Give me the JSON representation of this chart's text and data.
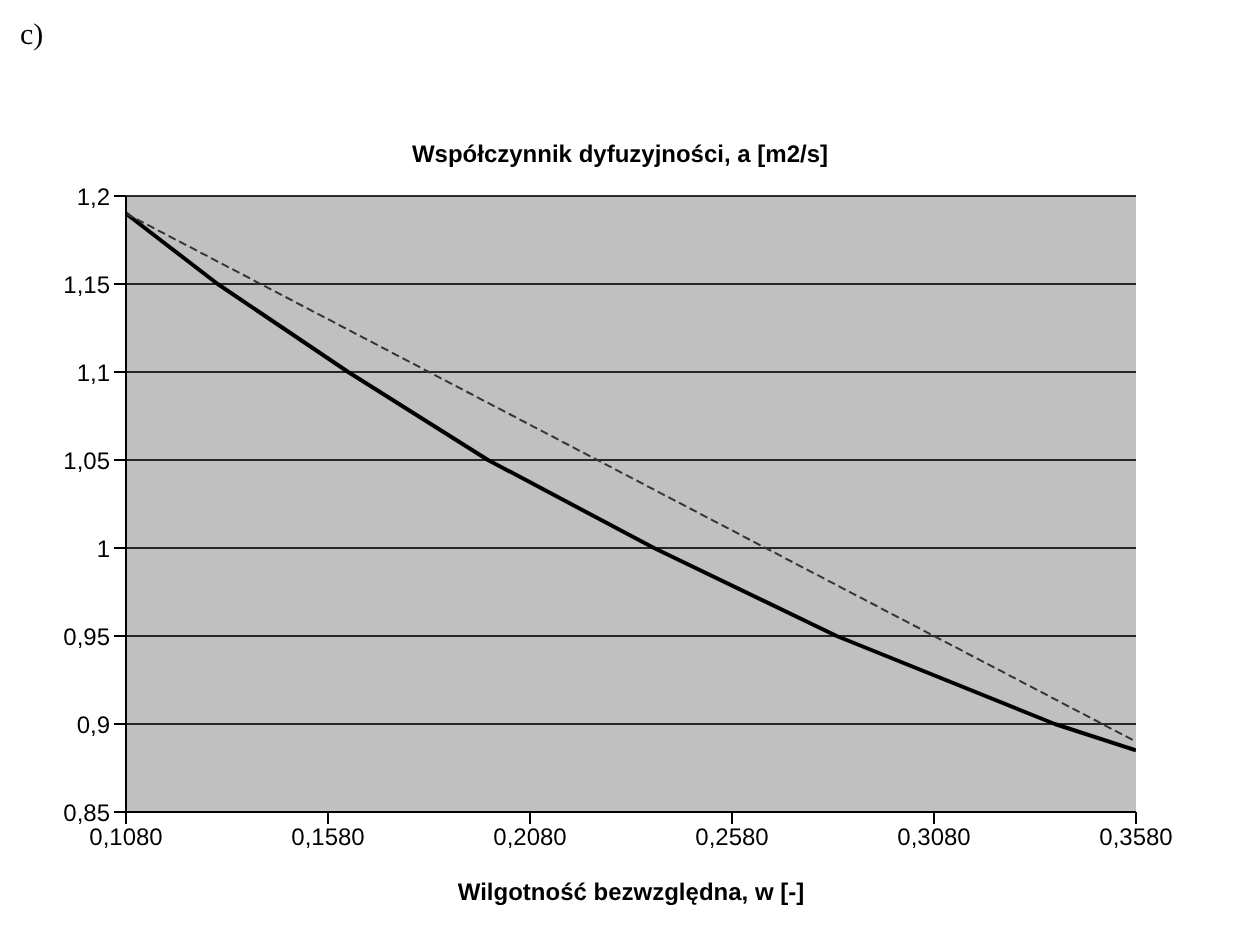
{
  "chart_data": {
    "type": "line",
    "title": "Współczynnik dyfuzyjności, a [m2/s]",
    "xlabel": "Wilgotność bezwzględna, w [-]",
    "annotations": [
      "c)"
    ],
    "xlim": [
      0.108,
      0.358
    ],
    "xticks": [
      {
        "value": 0.108,
        "label": "0,1080"
      },
      {
        "value": 0.158,
        "label": "0,1580"
      },
      {
        "value": 0.208,
        "label": "0,2080"
      },
      {
        "value": 0.258,
        "label": "0,2580"
      },
      {
        "value": 0.308,
        "label": "0,3080"
      },
      {
        "value": 0.358,
        "label": "0,3580"
      }
    ],
    "ylim": [
      0.85,
      1.2
    ],
    "yticks": [
      {
        "value": 0.85,
        "label": "0,85"
      },
      {
        "value": 0.9,
        "label": "0,9"
      },
      {
        "value": 0.95,
        "label": "0,95"
      },
      {
        "value": 1,
        "label": "1"
      },
      {
        "value": 1.05,
        "label": "1,05"
      },
      {
        "value": 1.1,
        "label": "1,1"
      },
      {
        "value": 1.15,
        "label": "1,15"
      },
      {
        "value": 1.2,
        "label": "1,2"
      }
    ],
    "grid": "y",
    "legend": false,
    "marker": "none",
    "series": [
      {
        "color": "#000000",
        "line_style": "solid",
        "x": [
          0.108,
          0.1307,
          0.163,
          0.1976,
          0.2387,
          0.2839,
          0.3379,
          0.358
        ],
        "values": [
          1.19,
          1.15,
          1.1,
          1.05,
          1.0,
          0.95,
          0.9,
          0.885
        ]
      },
      {
        "color": "#333333",
        "line_style": "dashed",
        "x": [
          0.108,
          0.358
        ],
        "values": [
          1.19,
          0.89
        ]
      }
    ]
  }
}
